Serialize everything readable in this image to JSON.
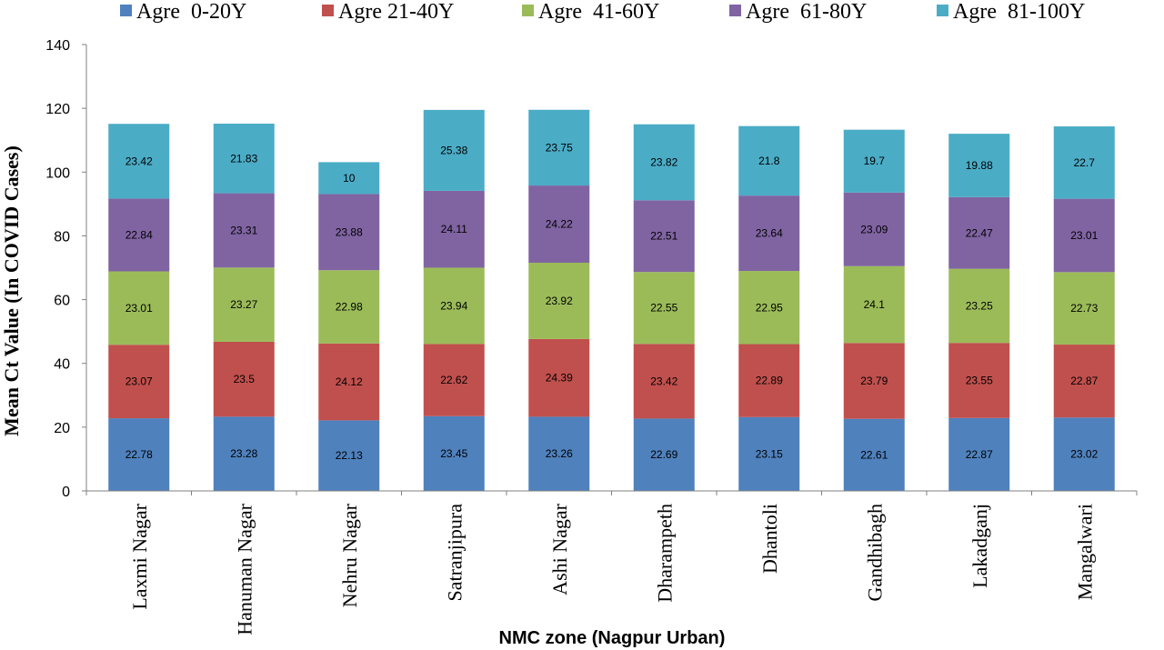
{
  "chart_data": {
    "type": "bar",
    "stacked": true,
    "xlabel": "NMC zone (Nagpur Urban)",
    "ylabel": "Mean Ct Value (In COVID Cases)",
    "ylim": [
      0,
      140
    ],
    "yticks": [
      0,
      20,
      40,
      60,
      80,
      100,
      120,
      140
    ],
    "grid": false,
    "legend_position": "top",
    "categories": [
      "Laxmi Nagar",
      "Hanuman Nagar",
      "Nehru Nagar",
      "Satranjipura",
      "Ashi Nagar",
      "Dharampeth",
      "Dhantoli",
      "Gandhibagh",
      "Lakadganj",
      "Mangalwari"
    ],
    "series": [
      {
        "name": "Agre  0-20Y",
        "color": "#4F81BD",
        "values": [
          22.78,
          23.28,
          22.13,
          23.45,
          23.26,
          22.69,
          23.15,
          22.61,
          22.87,
          23.02
        ]
      },
      {
        "name": "Agre 21-40Y",
        "color": "#C0504D",
        "values": [
          23.07,
          23.5,
          24.12,
          22.62,
          24.39,
          23.42,
          22.89,
          23.79,
          23.55,
          22.87
        ]
      },
      {
        "name": "Agre  41-60Y",
        "color": "#9BBB59",
        "values": [
          23.01,
          23.27,
          22.98,
          23.94,
          23.92,
          22.55,
          22.95,
          24.1,
          23.25,
          22.73
        ]
      },
      {
        "name": "Agre  61-80Y",
        "color": "#8064A2",
        "values": [
          22.84,
          23.31,
          23.88,
          24.11,
          24.22,
          22.51,
          23.64,
          23.09,
          22.47,
          23.01
        ]
      },
      {
        "name": "Agre  81-100Y",
        "color": "#4BACC6",
        "values": [
          23.42,
          21.83,
          10,
          25.38,
          23.75,
          23.82,
          21.8,
          19.7,
          19.88,
          22.7
        ]
      }
    ]
  }
}
